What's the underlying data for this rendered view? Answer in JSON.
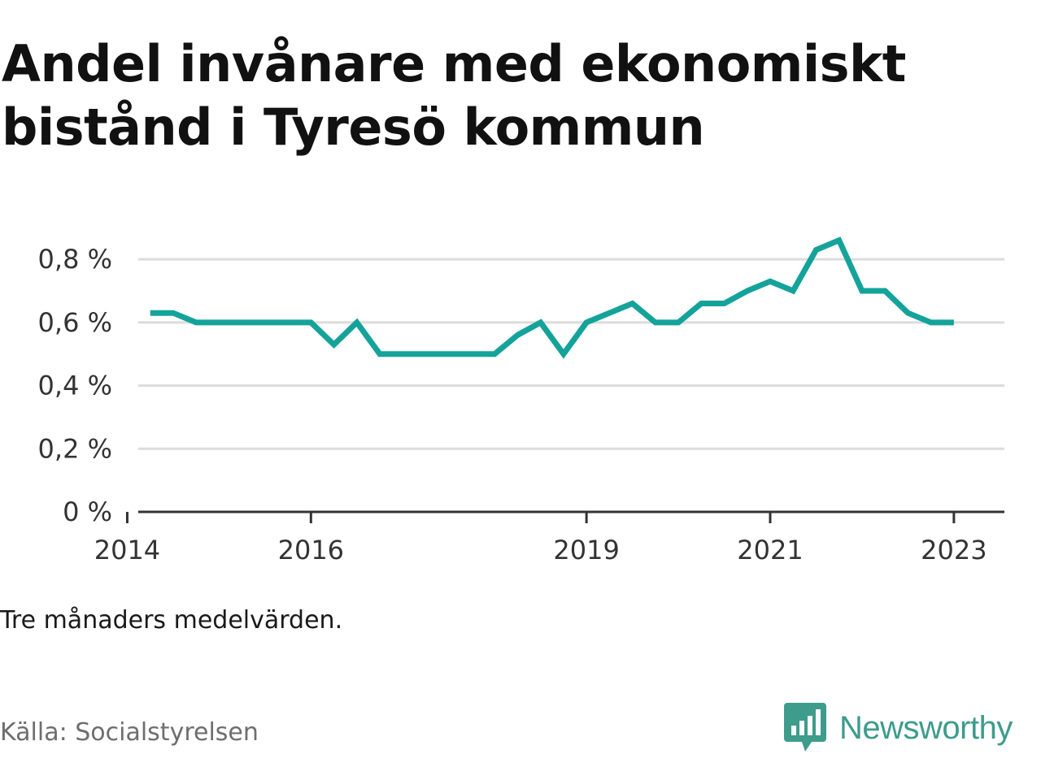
{
  "title": "Andel invånare med ekonomiskt bistånd i Tyresö kommun",
  "note": "Tre månaders medelvärden.",
  "source": "Källa: Socialstyrelsen",
  "brand": {
    "name": "Newsworthy",
    "icon": "bar-chart-speech-bubble-icon",
    "color": "#3d9c8c"
  },
  "colors": {
    "line": "#14a39a",
    "grid": "#dcdcdc",
    "axis": "#333333"
  },
  "chart_data": {
    "type": "line",
    "title": "Andel invånare med ekonomiskt bistånd i Tyresö kommun",
    "xlabel": "",
    "ylabel": "",
    "xlim": [
      2014,
      2023.5
    ],
    "ylim": [
      0,
      0.8
    ],
    "y_ticks": [
      {
        "value": 0,
        "label": "0 %"
      },
      {
        "value": 0.2,
        "label": "0,2 %"
      },
      {
        "value": 0.4,
        "label": "0,4 %"
      },
      {
        "value": 0.6,
        "label": "0,6 %"
      },
      {
        "value": 0.8,
        "label": "0,8 %"
      }
    ],
    "x_ticks": [
      {
        "value": 2014,
        "label": "2014"
      },
      {
        "value": 2016,
        "label": "2016"
      },
      {
        "value": 2019,
        "label": "2019"
      },
      {
        "value": 2021,
        "label": "2021"
      },
      {
        "value": 2023,
        "label": "2023"
      }
    ],
    "grid": true,
    "series": [
      {
        "x": [
          "2014-04",
          "2014-07",
          "2014-10",
          "2015-01",
          "2015-04",
          "2015-07",
          "2015-10",
          "2016-01",
          "2016-04",
          "2016-07",
          "2016-10",
          "2017-01",
          "2017-04",
          "2017-07",
          "2017-10",
          "2018-01",
          "2018-04",
          "2018-07",
          "2018-10",
          "2019-01",
          "2019-04",
          "2019-07",
          "2019-10",
          "2020-01",
          "2020-04",
          "2020-07",
          "2020-10",
          "2021-01",
          "2021-04",
          "2021-07",
          "2021-10",
          "2022-01",
          "2022-04",
          "2022-07",
          "2022-10",
          "2023-01"
        ],
        "values": [
          0.63,
          0.63,
          0.6,
          0.6,
          0.6,
          0.6,
          0.6,
          0.6,
          0.53,
          0.6,
          0.5,
          0.5,
          0.5,
          0.5,
          0.5,
          0.5,
          0.56,
          0.6,
          0.5,
          0.6,
          0.63,
          0.66,
          0.6,
          0.6,
          0.66,
          0.66,
          0.7,
          0.73,
          0.7,
          0.83,
          0.86,
          0.7,
          0.7,
          0.63,
          0.6,
          0.6
        ]
      }
    ]
  }
}
